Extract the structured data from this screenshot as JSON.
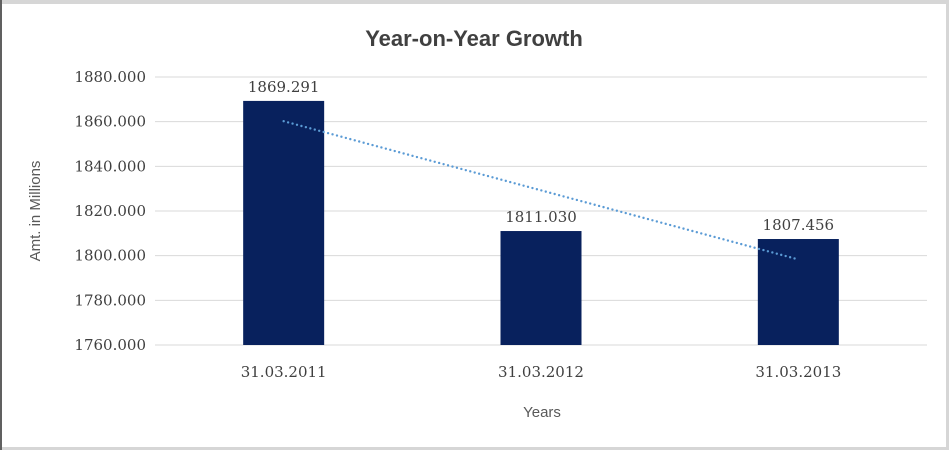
{
  "chart_data": {
    "type": "bar",
    "title": "Year-on-Year Growth",
    "xlabel": "Years",
    "ylabel": "Amt. in Millions",
    "categories": [
      "31.03.2011",
      "31.03.2012",
      "31.03.2013"
    ],
    "values": [
      1869.291,
      1811.03,
      1807.456
    ],
    "data_labels": [
      "1869.291",
      "1811.030",
      "1807.456"
    ],
    "y_ticks": [
      {
        "value": 1880,
        "label": "1880.000"
      },
      {
        "value": 1860,
        "label": "1860.000"
      },
      {
        "value": 1840,
        "label": "1840.000"
      },
      {
        "value": 1820,
        "label": "1820.000"
      },
      {
        "value": 1800,
        "label": "1800.000"
      },
      {
        "value": 1780,
        "label": "1780.000"
      },
      {
        "value": 1760,
        "label": "1760.000"
      }
    ],
    "ylim": [
      1760,
      1880
    ],
    "grid": true,
    "legend": "none",
    "bar_color": "#08215d",
    "gridline_color": "#d9d9d9",
    "trendline": {
      "type": "linear",
      "style": "dotted",
      "color": "#5b9bd5",
      "start_value": 1860.2,
      "end_value": 1798.3
    },
    "text_colors": {
      "title": "#404040",
      "ticks": "#3f3f3f",
      "data_labels": "#404040",
      "axis_titles": "#595959"
    }
  },
  "frame": {
    "border_light": "#d6d6d6",
    "border_dark": "#606060"
  }
}
